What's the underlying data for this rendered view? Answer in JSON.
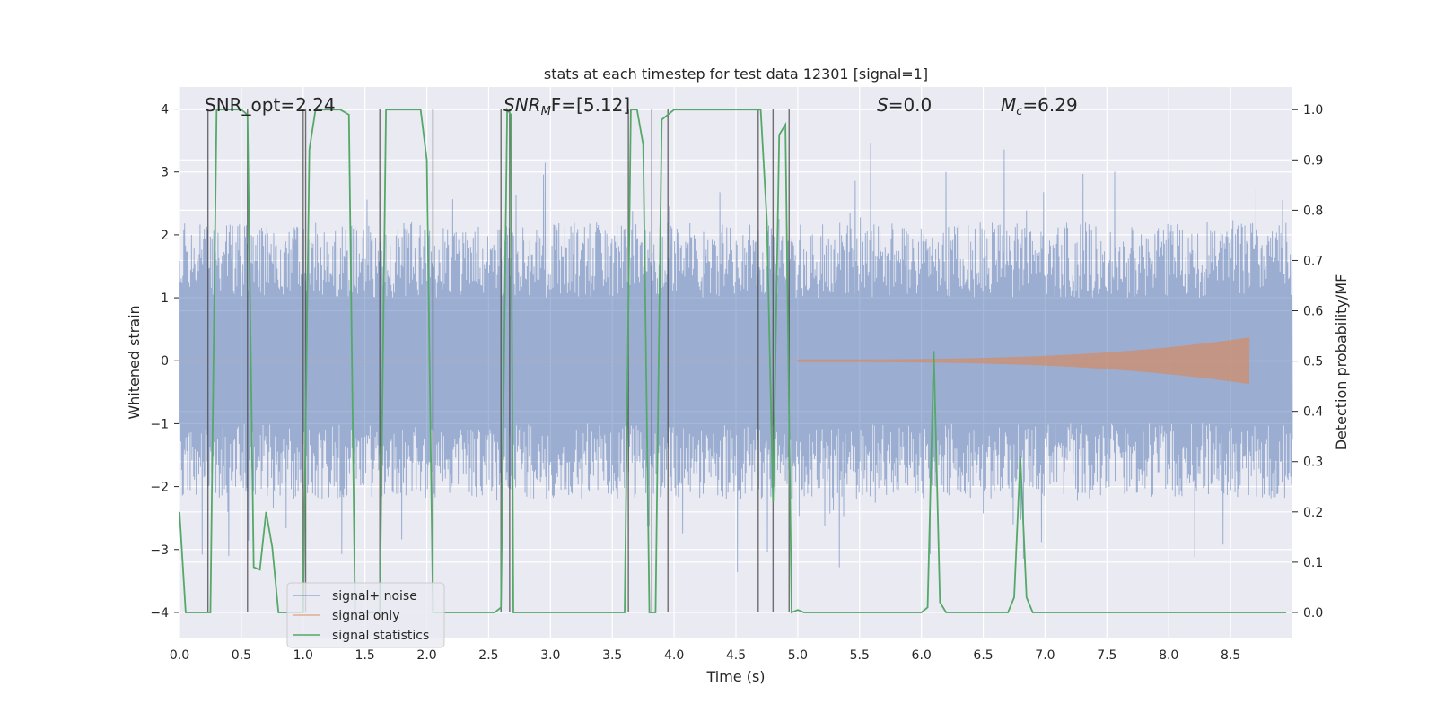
{
  "chart_data": {
    "type": "line",
    "title": "stats at each timestep for test data 12301 [signal=1]",
    "xlabel": "Time (s)",
    "ylabel_left": "Whitened strain",
    "ylabel_right": "Detection probability/MF",
    "xlim": [
      0,
      9.0
    ],
    "ylim_left": [
      -4.4,
      4.35
    ],
    "ylim_right": [
      -0.05,
      1.045
    ],
    "x_ticks": [
      "0.0",
      "0.5",
      "1.0",
      "1.5",
      "2.0",
      "2.5",
      "3.0",
      "3.5",
      "4.0",
      "4.5",
      "5.0",
      "5.5",
      "6.0",
      "6.5",
      "7.0",
      "7.5",
      "8.0",
      "8.5"
    ],
    "y_left_ticks": [
      "−4",
      "−3",
      "−2",
      "−1",
      "0",
      "1",
      "2",
      "3",
      "4"
    ],
    "y_right_ticks": [
      "0.0",
      "0.1",
      "0.2",
      "0.3",
      "0.4",
      "0.5",
      "0.6",
      "0.7",
      "0.8",
      "0.9",
      "1.0"
    ],
    "grid": true,
    "legend_position": "lower-left",
    "annotations": {
      "snr_opt": "SNR_opt=2.24",
      "snr_mf_prefix": "SNR",
      "snr_mf_sub": "M",
      "snr_mf_suffix": "F=[5.12]",
      "s_var": "S",
      "s_value": "=0.0",
      "mc_var": "M",
      "mc_sub": "c",
      "mc_value": "=6.29"
    },
    "series": [
      {
        "name": "signal+ noise",
        "color": "#4c72b0",
        "axis": "left",
        "description_values": "dense noise, envelope about ±2.2, peaks to about ±3.6"
      },
      {
        "name": "signal only",
        "color": "#dd8452",
        "axis": "left",
        "chirp_start": 5.0,
        "chirp_end": 8.65,
        "chirp_final_amplitude": 0.35
      },
      {
        "name": "signal statistics",
        "color": "#55a868",
        "axis": "right",
        "x": [
          0.0,
          0.05,
          0.2,
          0.25,
          0.3,
          0.5,
          0.55,
          0.6,
          0.65,
          0.7,
          0.75,
          0.8,
          0.82,
          0.85,
          0.95,
          1.0,
          1.05,
          1.1,
          1.3,
          1.37,
          1.42,
          1.5,
          1.62,
          1.67,
          1.95,
          2.0,
          2.05,
          2.1,
          2.15,
          2.2,
          2.55,
          2.6,
          2.65,
          2.68,
          2.7,
          2.75,
          2.8,
          3.55,
          3.6,
          3.65,
          3.7,
          3.75,
          3.8,
          3.85,
          3.9,
          4.0,
          4.2,
          4.65,
          4.7,
          4.75,
          4.8,
          4.85,
          4.9,
          4.95,
          5.0,
          5.05,
          5.1,
          6.0,
          6.05,
          6.1,
          6.15,
          6.2,
          6.7,
          6.75,
          6.8,
          6.85,
          6.9,
          8.6,
          8.95
        ],
        "y": [
          0.2,
          0.0,
          0.0,
          0.0,
          1.0,
          1.0,
          0.99,
          0.09,
          0.085,
          0.2,
          0.13,
          0.0,
          0.0,
          0.0,
          0.0,
          0.0,
          0.92,
          1.0,
          1.0,
          0.99,
          0.0,
          0.0,
          0.0,
          1.0,
          1.0,
          0.9,
          0.0,
          0.0,
          0.0,
          0.0,
          0.0,
          0.01,
          1.0,
          0.99,
          0.0,
          0.0,
          0.0,
          0.0,
          0.0,
          1.0,
          1.0,
          0.93,
          0.0,
          0.0,
          0.98,
          1.0,
          1.0,
          1.0,
          1.0,
          0.78,
          0.22,
          0.95,
          0.97,
          0.0,
          0.005,
          0.0,
          0.0,
          0.0,
          0.01,
          0.52,
          0.02,
          0.0,
          0.0,
          0.03,
          0.31,
          0.03,
          0.0,
          0.0,
          0.0
        ]
      }
    ],
    "vertical_markers": [
      0.23,
      0.55,
      1.0,
      1.02,
      1.62,
      2.05,
      2.6,
      2.67,
      3.63,
      3.82,
      3.95,
      4.68,
      4.8,
      4.93
    ]
  }
}
